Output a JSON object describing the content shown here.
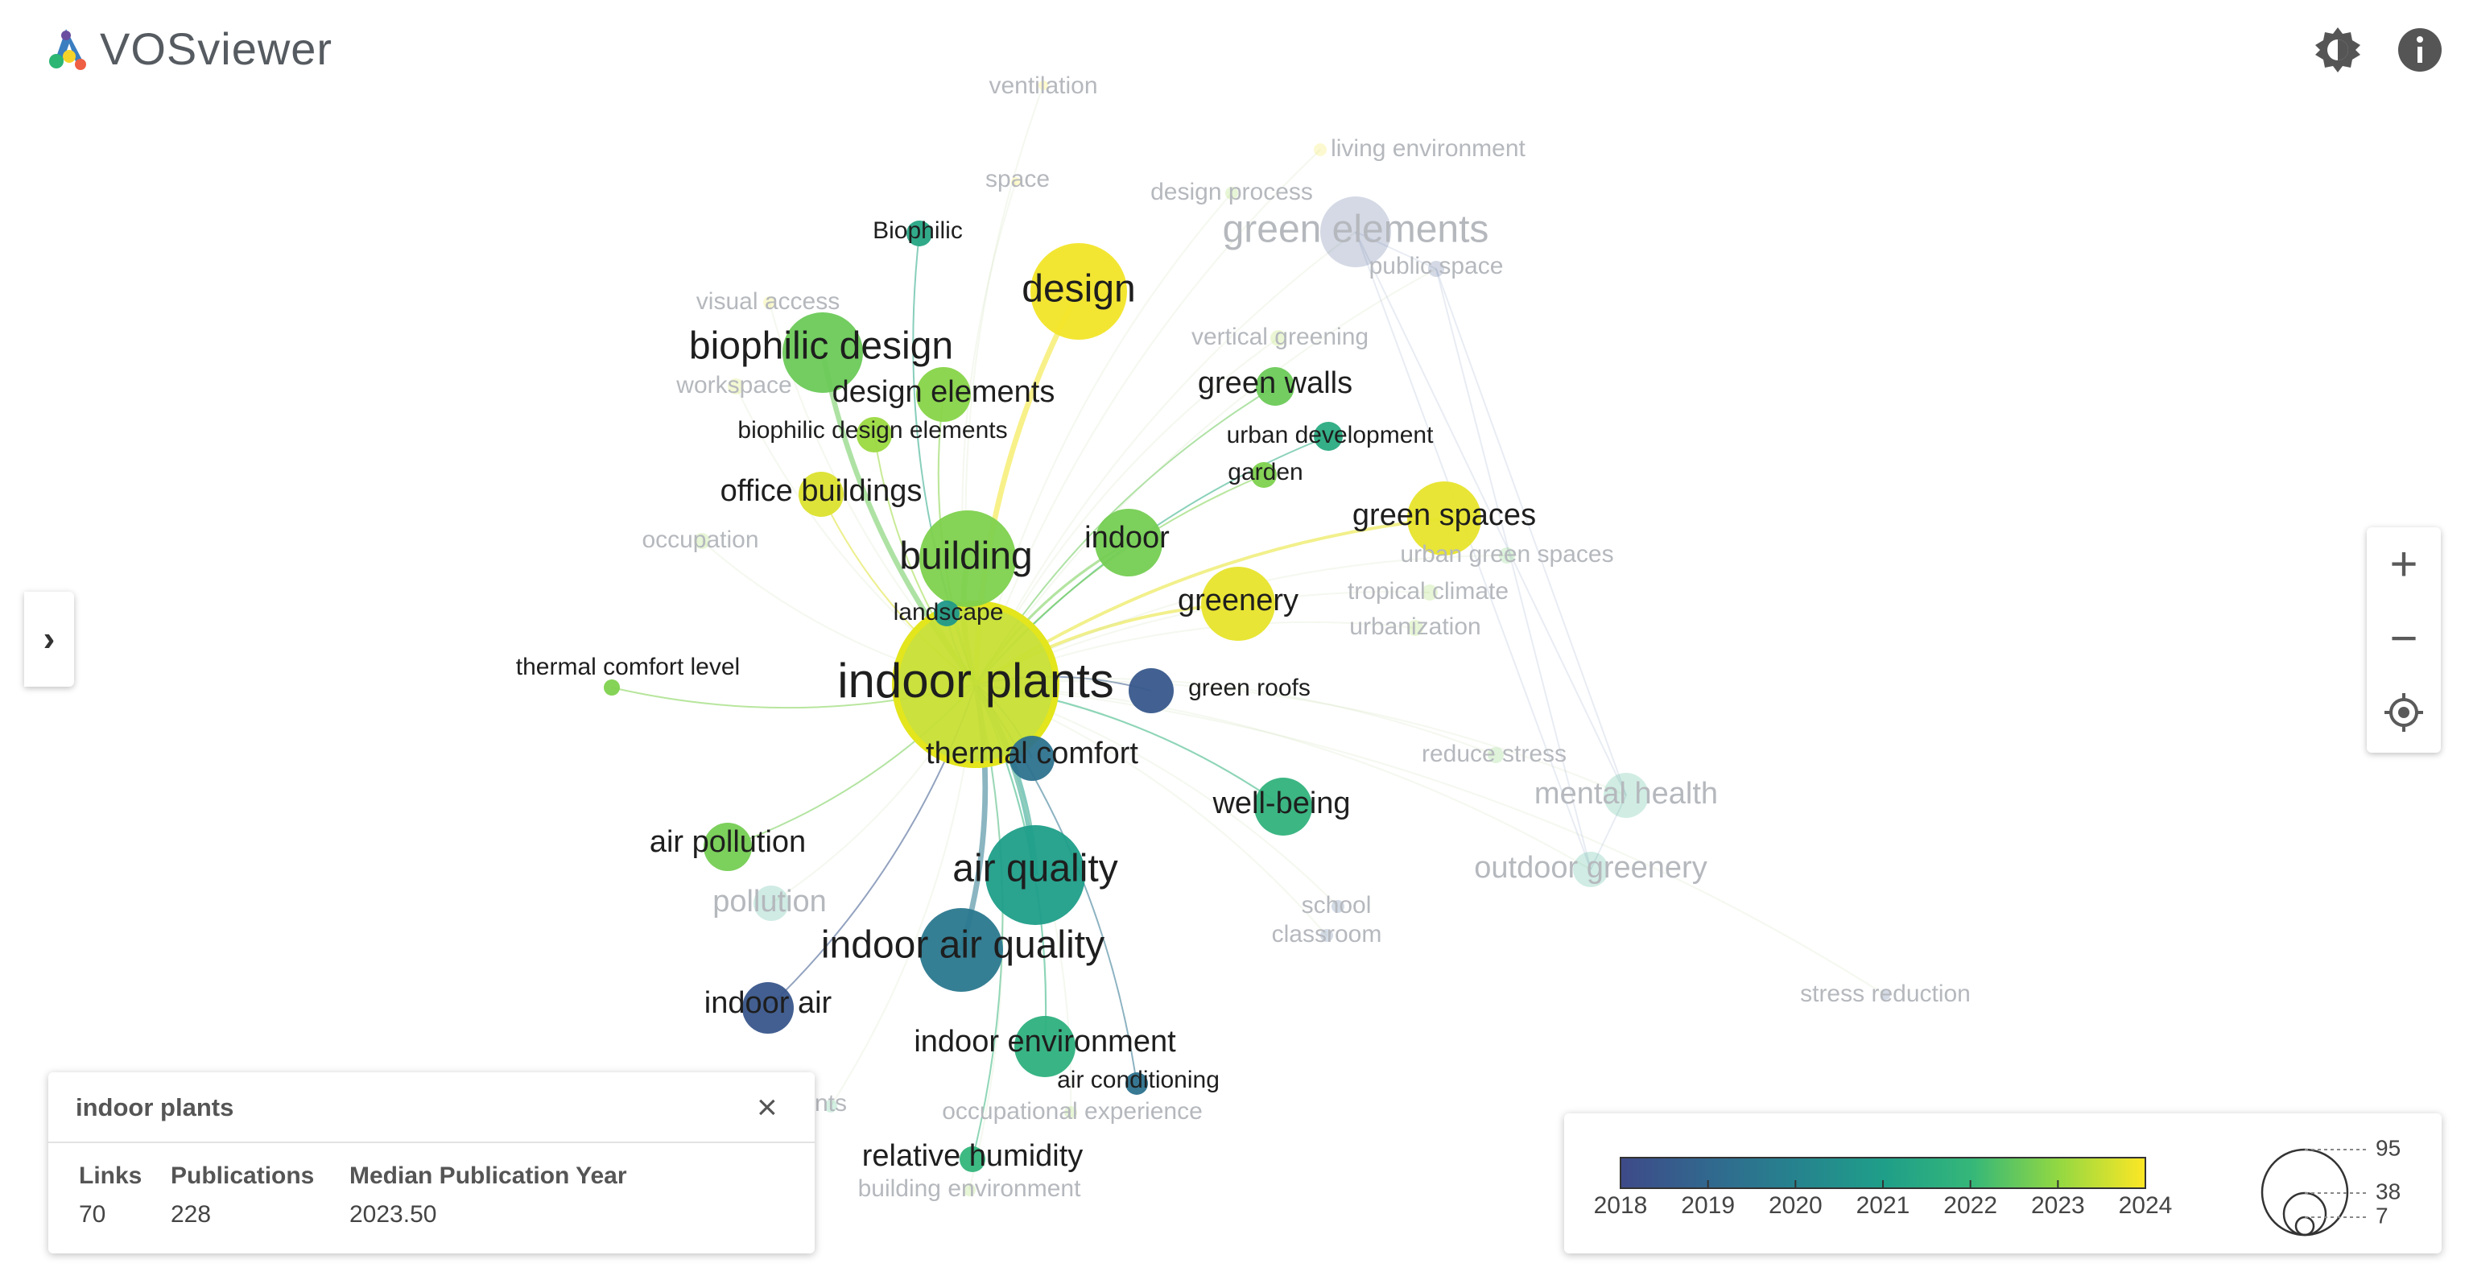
{
  "app": {
    "title": "VOSviewer"
  },
  "toolbar": {
    "theme_icon": "brightness-icon",
    "info_icon": "info-icon"
  },
  "sidebar_toggle": {
    "icon": "chevron-right-icon",
    "label": "›"
  },
  "zoom": {
    "zoom_in": "+",
    "zoom_out": "−",
    "reset_icon": "target-icon"
  },
  "colors": {
    "y2018": "#3e4a89",
    "y2019": "#31688e",
    "y2020": "#26828e",
    "y2021": "#1f9e89",
    "y2022": "#35b779",
    "y2023": "#90d743",
    "y2024": "#fde725"
  },
  "network": {
    "highlighted": "indoor plants",
    "nodes": [
      {
        "label": "indoor plants",
        "year": 2023.5,
        "weight": 228,
        "faded": false,
        "text": "xl"
      },
      {
        "label": "design",
        "year": 2023.9,
        "weight": 95,
        "faded": false,
        "text": "lg"
      },
      {
        "label": "biophilic design",
        "year": 2022.6,
        "weight": 90,
        "faded": false,
        "text": "lg"
      },
      {
        "label": "building",
        "year": 2022.8,
        "weight": 95,
        "faded": false,
        "text": "lg"
      },
      {
        "label": "air quality",
        "year": 2021.0,
        "weight": 110,
        "faded": false,
        "text": "lg"
      },
      {
        "label": "indoor air quality",
        "year": 2019.6,
        "weight": 95,
        "faded": false,
        "text": "lg"
      },
      {
        "label": "green spaces",
        "year": 2023.8,
        "weight": 55,
        "faded": false,
        "text": "md"
      },
      {
        "label": "greenery",
        "year": 2023.8,
        "weight": 55,
        "faded": false,
        "text": "md"
      },
      {
        "label": "indoor",
        "year": 2022.7,
        "weight": 45,
        "faded": false,
        "text": "md"
      },
      {
        "label": "design elements",
        "year": 2022.9,
        "weight": 30,
        "faded": false,
        "text": "md"
      },
      {
        "label": "biophilic design elements",
        "year": 2023.1,
        "weight": 14,
        "faded": false,
        "text": "sm"
      },
      {
        "label": "office buildings",
        "year": 2023.7,
        "weight": 20,
        "faded": false,
        "text": "md"
      },
      {
        "label": "green walls",
        "year": 2022.6,
        "weight": 18,
        "faded": false,
        "text": "md"
      },
      {
        "label": "urban development",
        "year": 2021.5,
        "weight": 10,
        "faded": false,
        "text": "sm"
      },
      {
        "label": "garden",
        "year": 2022.8,
        "weight": 8,
        "faded": false,
        "text": "sm"
      },
      {
        "label": "Biophilic",
        "year": 2021.3,
        "weight": 8,
        "faded": false,
        "text": "sm"
      },
      {
        "label": "landscape",
        "year": 2020.8,
        "weight": 8,
        "faded": false,
        "text": "sm"
      },
      {
        "label": "thermal comfort level",
        "year": 2022.8,
        "weight": 6,
        "faded": false,
        "text": "sm"
      },
      {
        "label": "green roofs",
        "year": 2018.5,
        "weight": 12,
        "faded": false,
        "text": "sm"
      },
      {
        "label": "thermal comfort",
        "year": 2019.4,
        "weight": 20,
        "faded": false,
        "text": "md"
      },
      {
        "label": "well-being",
        "year": 2021.8,
        "weight": 30,
        "faded": false,
        "text": "md"
      },
      {
        "label": "air pollution",
        "year": 2022.7,
        "weight": 22,
        "faded": false,
        "text": "md"
      },
      {
        "label": "indoor air",
        "year": 2018.4,
        "weight": 22,
        "faded": false,
        "text": "md"
      },
      {
        "label": "indoor environment",
        "year": 2021.7,
        "weight": 30,
        "faded": false,
        "text": "md"
      },
      {
        "label": "air conditioning",
        "year": 2019.4,
        "weight": 7,
        "faded": false,
        "text": "sm"
      },
      {
        "label": "relative humidity",
        "year": 2021.9,
        "weight": 8,
        "faded": false,
        "text": "md"
      },
      {
        "label": "ventilation",
        "year": 2024.0,
        "weight": 3,
        "faded": true,
        "text": "sm"
      },
      {
        "label": "living environment",
        "year": 2023.9,
        "weight": 3,
        "faded": true,
        "text": "sm"
      },
      {
        "label": "space",
        "year": 2024.0,
        "weight": 3,
        "faded": true,
        "text": "sm"
      },
      {
        "label": "design process",
        "year": 2023.0,
        "weight": 4,
        "faded": true,
        "text": "sm"
      },
      {
        "label": "green elements",
        "year": 2018.3,
        "weight": 40,
        "faded": true,
        "text": "lg"
      },
      {
        "label": "public space",
        "year": 2018.3,
        "weight": 5,
        "faded": true,
        "text": "sm"
      },
      {
        "label": "visual access",
        "year": 2023.8,
        "weight": 4,
        "faded": true,
        "text": "sm"
      },
      {
        "label": "vertical greening",
        "year": 2023.2,
        "weight": 5,
        "faded": true,
        "text": "sm"
      },
      {
        "label": "workspace",
        "year": 2023.5,
        "weight": 5,
        "faded": true,
        "text": "sm"
      },
      {
        "label": "occupation",
        "year": 2023.0,
        "weight": 5,
        "faded": true,
        "text": "sm"
      },
      {
        "label": "urban green spaces",
        "year": 2022.5,
        "weight": 5,
        "faded": true,
        "text": "sm"
      },
      {
        "label": "tropical climate",
        "year": 2023.0,
        "weight": 5,
        "faded": true,
        "text": "sm"
      },
      {
        "label": "urbanization",
        "year": 2023.0,
        "weight": 5,
        "faded": true,
        "text": "sm"
      },
      {
        "label": "reduce stress",
        "year": 2022.6,
        "weight": 5,
        "faded": true,
        "text": "sm"
      },
      {
        "label": "mental health",
        "year": 2021.6,
        "weight": 20,
        "faded": true,
        "text": "md"
      },
      {
        "label": "outdoor greenery",
        "year": 2021.4,
        "weight": 12,
        "faded": true,
        "text": "md"
      },
      {
        "label": "school",
        "year": 2018.5,
        "weight": 4,
        "faded": true,
        "text": "sm"
      },
      {
        "label": "classroom",
        "year": 2018.5,
        "weight": 4,
        "faded": true,
        "text": "sm"
      },
      {
        "label": "pollution",
        "year": 2021.2,
        "weight": 12,
        "faded": true,
        "text": "md"
      },
      {
        "label": "stress reduction",
        "year": 2018.4,
        "weight": 3,
        "faded": true,
        "text": "sm"
      },
      {
        "label": "occupational experience",
        "year": 2023.0,
        "weight": 4,
        "faded": true,
        "text": "sm"
      },
      {
        "label": "building environment",
        "year": 2023.0,
        "weight": 4,
        "faded": true,
        "text": "sm"
      },
      {
        "label": "nts",
        "year": 2022.0,
        "weight": 4,
        "faded": true,
        "text": "sm"
      }
    ]
  },
  "info_panel": {
    "title": "indoor plants",
    "close_label": "×",
    "headers": [
      "Links",
      "Publications",
      "Median Publication Year"
    ],
    "values": [
      "70",
      "228",
      "2023.50"
    ]
  },
  "legend": {
    "year_ticks": [
      "2018",
      "2019",
      "2020",
      "2021",
      "2022",
      "2023",
      "2024"
    ],
    "size_values": [
      "95",
      "38",
      "7"
    ]
  }
}
